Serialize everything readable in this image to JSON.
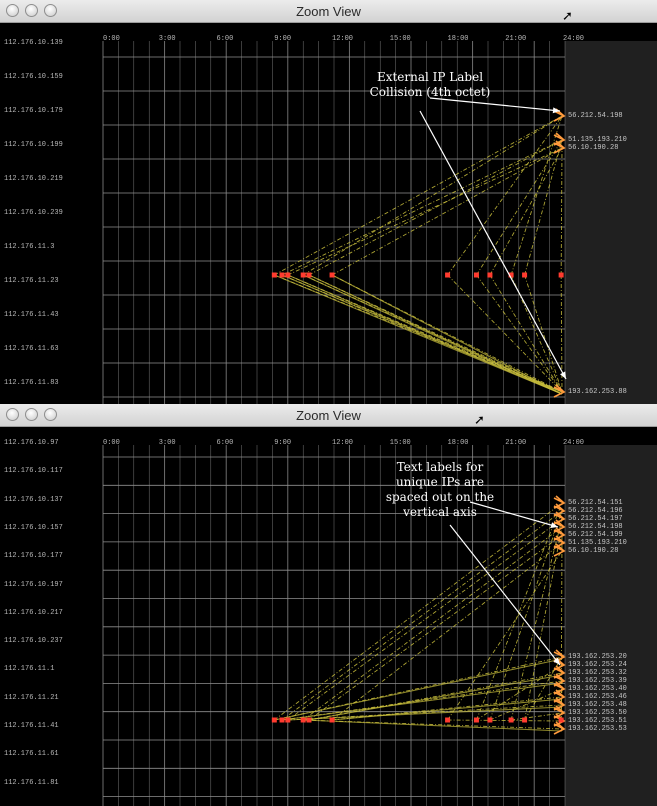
{
  "windows": [
    {
      "title": "Zoom View",
      "y_labels": [
        "112.176.10.139",
        "112.176.10.159",
        "112.176.10.179",
        "112.176.10.199",
        "112.176.10.219",
        "112.176.10.239",
        "112.176.11.3",
        "112.176.11.23",
        "112.176.11.43",
        "112.176.11.63",
        "112.176.11.83"
      ],
      "x_labels": [
        "0:00",
        "3:00",
        "6:00",
        "9:00",
        "12:00",
        "15:00",
        "18:00",
        "21:00",
        "24:00"
      ],
      "ip_groups": [
        {
          "lines": [
            "56.212.54.198"
          ],
          "target": "top"
        },
        {
          "lines": [
            "51.135.193.210",
            "56.10.190.28"
          ],
          "target": "top"
        },
        {
          "lines": [
            "193.162.253.88"
          ],
          "target": "bottom"
        }
      ],
      "annotation": "External IP Label\nCollision (4th octet)"
    },
    {
      "title": "Zoom View",
      "y_labels": [
        "112.176.10.97",
        "112.176.10.117",
        "112.176.10.137",
        "112.176.10.157",
        "112.176.10.177",
        "112.176.10.197",
        "112.176.10.217",
        "112.176.10.237",
        "112.176.11.1",
        "112.176.11.21",
        "112.176.11.41",
        "112.176.11.61",
        "112.176.11.81"
      ],
      "x_labels": [
        "0:00",
        "3:00",
        "6:00",
        "9:00",
        "12:00",
        "15:00",
        "18:00",
        "21:00",
        "24:00"
      ],
      "ip_groups": [
        {
          "lines": [
            "56.212.54.151",
            "56.212.54.196",
            "56.212.54.197",
            "56.212.54.198",
            "56.212.54.199",
            "51.135.193.210",
            "56.10.190.28"
          ],
          "target": "top"
        },
        {
          "lines": [
            "193.162.253.20",
            "193.162.253.24",
            "193.162.253.32",
            "193.162.253.39",
            "193.162.253.40",
            "193.162.253.46",
            "193.162.253.48",
            "193.162.253.50",
            "193.162.253.51",
            "193.162.253.53"
          ],
          "target": "bottom"
        }
      ],
      "annotation": "Text labels for\nunique IPs are\nspaced out on the\nvertical axis"
    }
  ],
  "source_times": [
    8.9,
    9.3,
    9.6,
    10.4,
    10.7,
    11.9,
    17.9,
    19.4,
    20.1,
    21.2,
    21.9,
    23.8
  ],
  "colors": {
    "source": "#ff3b2f",
    "edge": "#c9bf3c",
    "arrow": "#ff9a3c",
    "grid": "#8f8f8f",
    "annotation": "#ffffff"
  }
}
